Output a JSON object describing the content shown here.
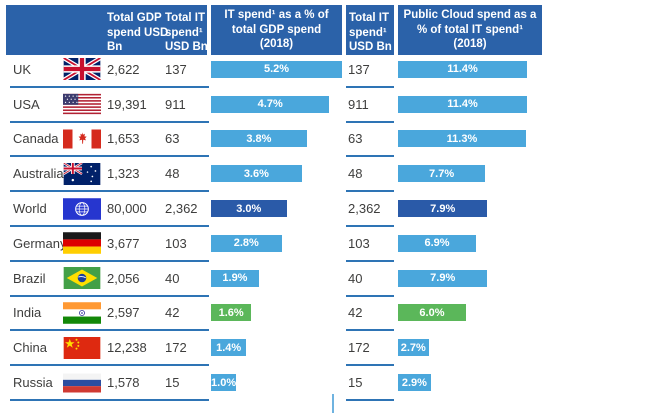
{
  "colors": {
    "header_bg": "#2b62a9",
    "bar_light_blue": "#4aa7dc",
    "bar_dark_blue": "#2a5aa8",
    "bar_green": "#5bb75a",
    "row_divider": "#2e74b5",
    "body_text": "#3e3e3d",
    "bar_label_text": "#ffffff"
  },
  "header": {
    "gdp_col": "Total GDP spend USD Bn",
    "it_col": "Total IT spend¹ USD Bn",
    "it_pct_col": "IT spend¹ as a % of total GDP spend (2018)",
    "it_col_2": "Total IT spend¹ USD Bn",
    "cloud_pct_col": "Public Cloud spend as a % of total IT spend¹ (2018)"
  },
  "table": {
    "rows": [
      {
        "country": "UK",
        "flag_icon": "uk-flag-icon",
        "gdp": "2,622",
        "it": "137",
        "it_pct_label": "5.2%",
        "it2": "137",
        "cloud_pct_label": "11.4%",
        "bar_color": "#4aa7dc"
      },
      {
        "country": "USA",
        "flag_icon": "usa-flag-icon",
        "gdp": "19,391",
        "it": "911",
        "it_pct_label": "4.7%",
        "it2": "911",
        "cloud_pct_label": "11.4%",
        "bar_color": "#4aa7dc"
      },
      {
        "country": "Canada",
        "flag_icon": "canada-flag-icon",
        "gdp": "1,653",
        "it": "63",
        "it_pct_label": "3.8%",
        "it2": "63",
        "cloud_pct_label": "11.3%",
        "bar_color": "#4aa7dc"
      },
      {
        "country": "Australia",
        "flag_icon": "australia-flag-icon",
        "gdp": "1,323",
        "it": "48",
        "it_pct_label": "3.6%",
        "it2": "48",
        "cloud_pct_label": "7.7%",
        "bar_color": "#4aa7dc"
      },
      {
        "country": "World",
        "flag_icon": "world-flag-icon",
        "gdp": "80,000",
        "it": "2,362",
        "it_pct_label": "3.0%",
        "it2": "2,362",
        "cloud_pct_label": "7.9%",
        "bar_color": "#2a5aa8"
      },
      {
        "country": "Germany",
        "flag_icon": "germany-flag-icon",
        "gdp": "3,677",
        "it": "103",
        "it_pct_label": "2.8%",
        "it2": "103",
        "cloud_pct_label": "6.9%",
        "bar_color": "#4aa7dc"
      },
      {
        "country": "Brazil",
        "flag_icon": "brazil-flag-icon",
        "gdp": "2,056",
        "it": "40",
        "it_pct_label": "1.9%",
        "it2": "40",
        "cloud_pct_label": "7.9%",
        "bar_color": "#4aa7dc"
      },
      {
        "country": "India",
        "flag_icon": "india-flag-icon",
        "gdp": "2,597",
        "it": "42",
        "it_pct_label": "1.6%",
        "it2": "42",
        "cloud_pct_label": "6.0%",
        "bar_color": "#5bb75a"
      },
      {
        "country": "China",
        "flag_icon": "china-flag-icon",
        "gdp": "12,238",
        "it": "172",
        "it_pct_label": "1.4%",
        "it2": "172",
        "cloud_pct_label": "2.7%",
        "bar_color": "#4aa7dc"
      },
      {
        "country": "Russia",
        "flag_icon": "russia-flag-icon",
        "gdp": "1,578",
        "it": "15",
        "it_pct_label": "1.0%",
        "it2": "15",
        "cloud_pct_label": "2.9%",
        "bar_color": "#4aa7dc"
      }
    ]
  },
  "chart_data": {
    "type": "bar",
    "categories": [
      "UK",
      "USA",
      "Canada",
      "Australia",
      "World",
      "Germany",
      "Brazil",
      "India",
      "China",
      "Russia"
    ],
    "series": [
      {
        "name": "Total GDP spend USD Bn",
        "values": [
          2622,
          19391,
          1653,
          1323,
          80000,
          3677,
          2056,
          2597,
          12238,
          1578
        ]
      },
      {
        "name": "Total IT spend¹ USD Bn",
        "values": [
          137,
          911,
          63,
          48,
          2362,
          103,
          40,
          42,
          172,
          15
        ]
      },
      {
        "name": "IT spend¹ as a % of total GDP spend (2018)",
        "values": [
          5.2,
          4.7,
          3.8,
          3.6,
          3.0,
          2.8,
          1.9,
          1.6,
          1.4,
          1.0
        ]
      },
      {
        "name": "Public Cloud spend as a % of total IT spend¹ (2018)",
        "values": [
          11.4,
          11.4,
          11.3,
          7.7,
          7.9,
          6.9,
          7.9,
          6.0,
          2.7,
          2.9
        ]
      }
    ],
    "title": "",
    "xlabel": "",
    "ylabel": "",
    "legend_position": "none",
    "grid": false,
    "highlight_rows": {
      "World": "dark-blue",
      "India": "green"
    }
  }
}
